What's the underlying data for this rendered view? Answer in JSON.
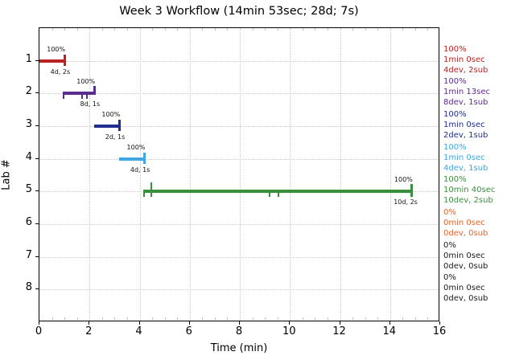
{
  "chart_data": {
    "type": "gantt",
    "title": "Week 3 Workflow (14min 53sec; 28d; 7s)",
    "xlabel": "Time (min)",
    "ylabel": "Lab #",
    "xlim": [
      0,
      16
    ],
    "xticks": [
      0,
      2,
      4,
      6,
      8,
      10,
      12,
      14,
      16
    ],
    "x_minor_step": 0.5,
    "grid": true,
    "legend_position": "right",
    "labs": [
      {
        "lab": "1",
        "color": "#bb2222",
        "percent": "100%",
        "duration": "1min 0sec",
        "devsub": "4dev, 2sub",
        "bar": {
          "start": 0.0,
          "end": 1.0,
          "label": "4d, 2s"
        },
        "ticks": [
          {
            "x": 1.0,
            "up": 8,
            "down": 6,
            "w": 3
          }
        ]
      },
      {
        "lab": "2",
        "color": "#5b2d8e",
        "percent": "100%",
        "duration": "1min 13sec",
        "devsub": "8dev, 1sub",
        "bar": {
          "start": 0.97,
          "end": 2.19,
          "label": "8d, 1s"
        },
        "ticks": [
          {
            "x": 0.97,
            "up": 2,
            "down": 7,
            "w": 2
          },
          {
            "x": 1.7,
            "up": 2,
            "down": 7,
            "w": 2
          },
          {
            "x": 1.9,
            "up": 2,
            "down": 7,
            "w": 2
          },
          {
            "x": 2.19,
            "up": 9,
            "down": 2,
            "w": 3
          }
        ]
      },
      {
        "lab": "3",
        "color": "#1f2f8f",
        "percent": "100%",
        "duration": "1min 0sec",
        "devsub": "2dev, 1sub",
        "bar": {
          "start": 2.19,
          "end": 3.19,
          "label": "2d, 1s"
        },
        "ticks": [
          {
            "x": 3.19,
            "up": 8,
            "down": 6,
            "w": 3
          }
        ]
      },
      {
        "lab": "4",
        "color": "#41a7e0",
        "percent": "100%",
        "duration": "1min 0sec",
        "devsub": "4dev, 1sub",
        "bar": {
          "start": 3.19,
          "end": 4.19,
          "label": "4d, 1s"
        },
        "ticks": [
          {
            "x": 4.19,
            "up": 8,
            "down": 6,
            "w": 3
          }
        ]
      },
      {
        "lab": "5",
        "color": "#3a8f3d",
        "percent": "100%",
        "duration": "10min 40sec",
        "devsub": "10dev, 2sub",
        "bar": {
          "start": 4.19,
          "end": 14.87,
          "label": "10d, 2s"
        },
        "ticks": [
          {
            "x": 4.19,
            "up": 2,
            "down": 7,
            "w": 2
          },
          {
            "x": 4.45,
            "up": 11,
            "down": 7,
            "w": 2
          },
          {
            "x": 9.2,
            "up": 2,
            "down": 7,
            "w": 2
          },
          {
            "x": 9.55,
            "up": 2,
            "down": 7,
            "w": 2
          },
          {
            "x": 14.87,
            "up": 9,
            "down": 7,
            "w": 3
          }
        ]
      },
      {
        "lab": "6",
        "color": "#e8632c",
        "percent": "0%",
        "duration": "0min 0sec",
        "devsub": "0dev, 0sub",
        "bar": null,
        "ticks": []
      },
      {
        "lab": "7",
        "color": "#1a1a1a",
        "percent": "0%",
        "duration": "0min 0sec",
        "devsub": "0dev, 0sub",
        "bar": null,
        "ticks": []
      },
      {
        "lab": "8",
        "color": "#1a1a1a",
        "percent": "0%",
        "duration": "0min 0sec",
        "devsub": "0dev, 0sub",
        "bar": null,
        "ticks": []
      }
    ]
  }
}
